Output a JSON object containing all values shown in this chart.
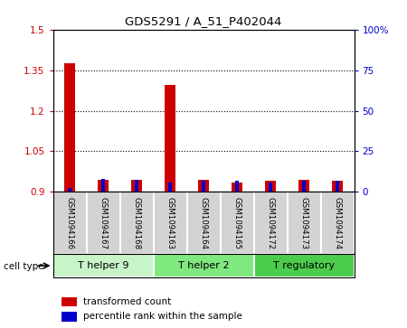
{
  "title": "GDS5291 / A_51_P402044",
  "samples": [
    "GSM1094166",
    "GSM1094167",
    "GSM1094168",
    "GSM1094163",
    "GSM1094164",
    "GSM1094165",
    "GSM1094172",
    "GSM1094173",
    "GSM1094174"
  ],
  "red_values": [
    1.375,
    0.945,
    0.945,
    1.295,
    0.945,
    0.935,
    0.94,
    0.945,
    0.94
  ],
  "blue_values": [
    2.5,
    8.0,
    7.5,
    6.0,
    7.0,
    7.0,
    6.0,
    7.0,
    7.0
  ],
  "ylim_left": [
    0.9,
    1.5
  ],
  "ylim_right": [
    0,
    100
  ],
  "yticks_left": [
    0.9,
    1.05,
    1.2,
    1.35,
    1.5
  ],
  "yticks_right": [
    0,
    25,
    50,
    75,
    100
  ],
  "ytick_labels_left": [
    "0.9",
    "1.05",
    "1.2",
    "1.35",
    "1.5"
  ],
  "ytick_labels_right": [
    "0",
    "25",
    "50",
    "75",
    "100%"
  ],
  "groups": [
    {
      "label": "T helper 9",
      "start": 0,
      "end": 3,
      "color": "#c8f5c8"
    },
    {
      "label": "T helper 2",
      "start": 3,
      "end": 6,
      "color": "#7fe87f"
    },
    {
      "label": "T regulatory",
      "start": 6,
      "end": 9,
      "color": "#4ccc4c"
    }
  ],
  "legend_items": [
    {
      "label": "transformed count",
      "color": "#cc0000"
    },
    {
      "label": "percentile rank within the sample",
      "color": "#0000cc"
    }
  ],
  "cell_type_label": "cell type",
  "red_bar_width": 0.32,
  "blue_bar_width": 0.13,
  "red_color": "#cc0000",
  "blue_color": "#0000cc",
  "plot_bg_color": "#ffffff",
  "sample_bg_color": "#d3d3d3"
}
